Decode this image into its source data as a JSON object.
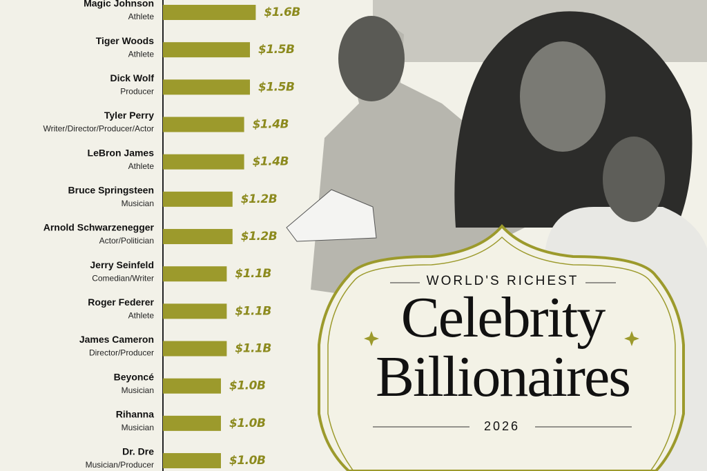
{
  "chart_data": {
    "type": "bar",
    "orientation": "horizontal",
    "kicker": "WORLD'S RICHEST",
    "title": "Celebrity Billionaires",
    "subtitle": "2026",
    "categories": [
      "Magic Johnson",
      "Tiger Woods",
      "Dick Wolf",
      "Tyler Perry",
      "LeBron James",
      "Bruce Springsteen",
      "Arnold Schwarzenegger",
      "Jerry Seinfeld",
      "Roger Federer",
      "James Cameron",
      "Beyoncé",
      "Rihanna",
      "Dr. Dre"
    ],
    "roles": [
      "Athlete",
      "Athlete",
      "Producer",
      "Writer/Director/Producer/Actor",
      "Athlete",
      "Musician",
      "Actor/Politician",
      "Comedian/Writer",
      "Athlete",
      "Director/Producer",
      "Musician",
      "Musician",
      "Musician/Producer"
    ],
    "values": [
      1.6,
      1.5,
      1.5,
      1.4,
      1.4,
      1.2,
      1.2,
      1.1,
      1.1,
      1.1,
      1.0,
      1.0,
      1.0
    ],
    "value_labels": [
      "$1.6B",
      "$1.5B",
      "$1.5B",
      "$1.4B",
      "$1.4B",
      "$1.2B",
      "$1.2B",
      "$1.1B",
      "$1.1B",
      "$1.1B",
      "$1.0B",
      "$1.0B",
      "$1.0B"
    ],
    "color": "#9c9a2c"
  }
}
